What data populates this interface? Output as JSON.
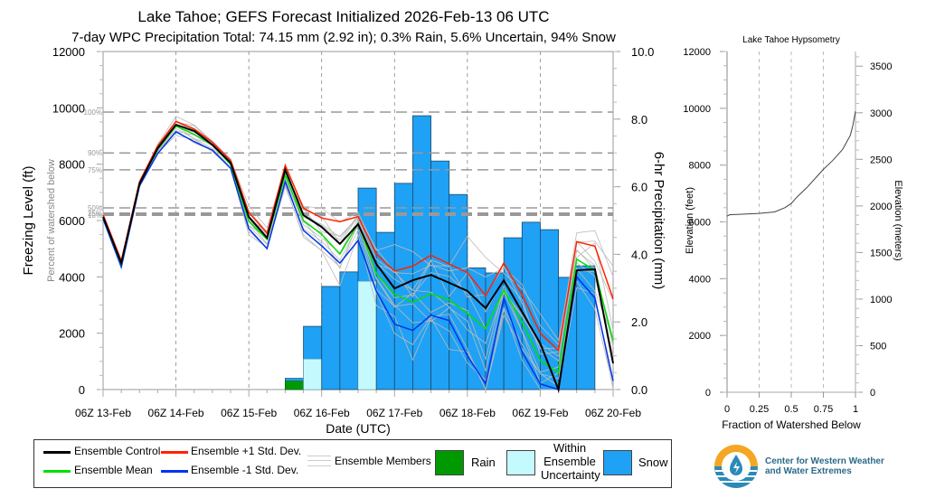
{
  "title": "Lake Tahoe; GEFS Forecast Initialized 2026-Feb-13 06 UTC",
  "subtitle": "7-day WPC Precipitation Total: 74.15 mm (2.92 in);  0.3% Rain, 5.6% Uncertain, 94% Snow",
  "chart_data": [
    {
      "type": "bar+line",
      "name": "main",
      "xlabel": "Date (UTC)",
      "ylabel_left": "Freezing Level (ft)",
      "ylabel_left_secondary": "Percent of watershed below",
      "ylabel_right": "6-hr Precipitation (mm)",
      "x_ticks": [
        "06Z 13-Feb",
        "06Z 14-Feb",
        "06Z 15-Feb",
        "06Z 16-Feb",
        "06Z 17-Feb",
        "06Z 18-Feb",
        "06Z 19-Feb",
        "06Z 20-Feb"
      ],
      "x_steps_per_day": 4,
      "y_left_range": [
        0,
        12000
      ],
      "y_left_ticks": [
        "0",
        "2000",
        "4000",
        "6000",
        "8000",
        "10000",
        "12000"
      ],
      "y_right_range": [
        0,
        10
      ],
      "y_right_ticks": [
        "0.0",
        "2.0",
        "4.0",
        "6.0",
        "8.0",
        "10.0"
      ],
      "percentile_lines": [
        {
          "label": "100%",
          "ft": 9850
        },
        {
          "label": "90%",
          "ft": 8400
        },
        {
          "label": "75%",
          "ft": 7800
        },
        {
          "label": "50%",
          "ft": 6450
        },
        {
          "label": "25%",
          "ft": 6250
        },
        {
          "label": "10%",
          "ft": 6200
        }
      ],
      "series": [
        {
          "name": "Ensemble Control",
          "color": "#000000",
          "values": [
            6130,
            4490,
            7310,
            8570,
            9400,
            9180,
            8690,
            8050,
            6130,
            5390,
            7800,
            6190,
            5770,
            5170,
            5870,
            4460,
            3590,
            3880,
            4070,
            3790,
            3500,
            2890,
            3880,
            2760,
            1640,
            0,
            4230,
            4270,
            930
          ]
        },
        {
          "name": "Ensemble Mean",
          "color": "#00e000",
          "values": [
            6130,
            4450,
            7310,
            8520,
            9350,
            9060,
            8690,
            7990,
            5970,
            5330,
            7610,
            6000,
            5510,
            4810,
            5900,
            4120,
            3380,
            3100,
            3400,
            3180,
            2700,
            2160,
            3530,
            2400,
            1030,
            600,
            4630,
            4230,
            1730
          ]
        },
        {
          "name": "Ensemble +1 Std. Dev.",
          "color": "#ff2200",
          "values": [
            6200,
            4570,
            7380,
            8650,
            9520,
            9250,
            8780,
            8140,
            6290,
            5550,
            7960,
            6440,
            6090,
            5960,
            6140,
            4810,
            4210,
            4380,
            4770,
            4460,
            4150,
            3330,
            4490,
            3370,
            2000,
            1390,
            5250,
            5090,
            3220
          ]
        },
        {
          "name": "Ensemble -1 Std. Dev.",
          "color": "#0033ee",
          "values": [
            6060,
            4350,
            7230,
            8380,
            9150,
            8800,
            8500,
            7860,
            5710,
            5000,
            7380,
            5650,
            5100,
            4490,
            5290,
            3490,
            2320,
            2100,
            2640,
            2450,
            1200,
            200,
            3240,
            1340,
            200,
            0,
            4000,
            3250,
            300
          ]
        }
      ],
      "bars": {
        "start_step": 10,
        "snow_total_mm": [
          0.33,
          1.87,
          3.05,
          3.48,
          5.96,
          4.65,
          6.1,
          8.1,
          6.76,
          5.77,
          3.6,
          3.45,
          4.49,
          4.95,
          4.73,
          3.32,
          3.66
        ],
        "uncertain_mm": [
          0,
          0.9,
          0,
          0,
          3.2,
          0,
          0,
          0,
          0,
          0,
          0,
          0,
          0,
          0,
          0,
          0,
          0
        ],
        "rain_mm": [
          0.25,
          0,
          0,
          0,
          0,
          0,
          0,
          0,
          0,
          0,
          0,
          0,
          0,
          0,
          0,
          0,
          0
        ]
      },
      "colors": {
        "snow": "#1fa1f5",
        "uncertain": "#c4fafd",
        "rain": "#009a00",
        "members": "#bbbbbb"
      }
    },
    {
      "type": "line",
      "name": "hypsometry",
      "title": "Lake Tahoe Hypsometry",
      "xlabel": "Fraction of Watershed Below",
      "ylabel_left": "Elevation (feet)",
      "ylabel_right": "Elevation (meters)",
      "x_range": [
        0,
        1
      ],
      "x_ticks": [
        "0",
        "0.25",
        "0.5",
        "0.75",
        "1"
      ],
      "y_left_range": [
        0,
        12000
      ],
      "y_left_ticks": [
        "0",
        "2000",
        "4000",
        "6000",
        "8000",
        "10000",
        "12000"
      ],
      "y_right_ticks": [
        "0",
        "500",
        "1000",
        "1500",
        "2000",
        "2500",
        "3000",
        "3500"
      ],
      "x": [
        0,
        0.02,
        0.25,
        0.37,
        0.45,
        0.5,
        0.55,
        0.62,
        0.7,
        0.75,
        0.82,
        0.9,
        0.93,
        0.96,
        0.98,
        1.0
      ],
      "y": [
        6200,
        6250,
        6300,
        6350,
        6500,
        6650,
        6900,
        7200,
        7600,
        7850,
        8150,
        8550,
        8800,
        9050,
        9400,
        9900
      ]
    }
  ],
  "legend": {
    "control": "Ensemble Control",
    "mean": "Ensemble Mean",
    "plus": "Ensemble +1 Std. Dev.",
    "minus": "Ensemble -1 Std. Dev.",
    "members": "Ensemble Members",
    "rain": "Rain",
    "uncertain_1": "Within",
    "uncertain_2": "Ensemble",
    "uncertain_3": "Uncertainty",
    "snow": "Snow"
  },
  "logo": {
    "line1": "Center for Western Weather",
    "line2": "and Water Extremes"
  }
}
